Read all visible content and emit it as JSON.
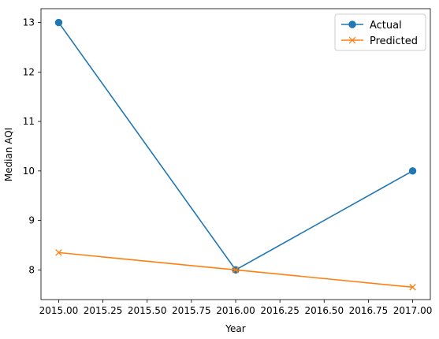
{
  "chart_data": {
    "type": "line",
    "xlabel": "Year",
    "ylabel": "Median AQI",
    "xlim": [
      2014.9,
      2017.1
    ],
    "ylim": [
      7.4,
      13.28
    ],
    "x_ticks": [
      2015.0,
      2015.25,
      2015.5,
      2015.75,
      2016.0,
      2016.25,
      2016.5,
      2016.75,
      2017.0
    ],
    "x_tick_labels": [
      "2015.00",
      "2015.25",
      "2015.50",
      "2015.75",
      "2016.00",
      "2016.25",
      "2016.50",
      "2016.75",
      "2017.00"
    ],
    "y_ticks": [
      8,
      9,
      10,
      11,
      12,
      13
    ],
    "y_tick_labels": [
      "8",
      "9",
      "10",
      "11",
      "12",
      "13"
    ],
    "grid": false,
    "legend_position": "top-right",
    "series": [
      {
        "name": "Actual",
        "color": "#1f77b4",
        "marker": "circle",
        "x": [
          2015,
          2016,
          2017
        ],
        "y": [
          13,
          8,
          10
        ]
      },
      {
        "name": "Predicted",
        "color": "#ff7f0e",
        "marker": "x",
        "x": [
          2015,
          2016,
          2017
        ],
        "y": [
          8.35,
          8.0,
          7.65
        ]
      }
    ]
  }
}
